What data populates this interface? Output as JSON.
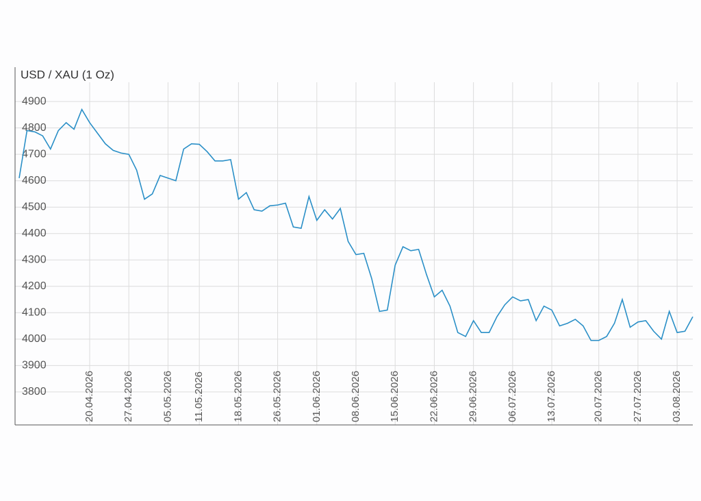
{
  "chart_data": {
    "type": "line",
    "title": "USD / XAU (1 Oz)",
    "categories": [
      null,
      null,
      null,
      null,
      null,
      null,
      null,
      null,
      null,
      "20.04.2026",
      null,
      null,
      null,
      null,
      "27.04.2026",
      null,
      null,
      null,
      null,
      "05.05.2026",
      null,
      null,
      null,
      "11.05.2026",
      null,
      null,
      null,
      null,
      "18.05.2026",
      null,
      null,
      null,
      null,
      "26.05.2026",
      null,
      null,
      null,
      null,
      "01.06.2026",
      null,
      null,
      null,
      null,
      "08.06.2026",
      null,
      null,
      null,
      null,
      "15.06.2026",
      null,
      null,
      null,
      null,
      "22.06.2026",
      null,
      null,
      null,
      null,
      "29.06.2026",
      null,
      null,
      null,
      null,
      "06.07.2026",
      null,
      null,
      null,
      null,
      "13.07.2026",
      null,
      null,
      null,
      null,
      null,
      "20.07.2026",
      null,
      null,
      null,
      null,
      "27.07.2026",
      null,
      null,
      null,
      null,
      "03.08.2026",
      null,
      null
    ],
    "values": [
      4610,
      4790,
      4785,
      4770,
      4720,
      4790,
      4820,
      4795,
      4870,
      4820,
      4780,
      4740,
      4715,
      4705,
      4700,
      4640,
      4530,
      4550,
      4620,
      4610,
      4600,
      4720,
      4740,
      4738,
      4710,
      4675,
      4675,
      4680,
      4530,
      4555,
      4490,
      4485,
      4505,
      4508,
      4515,
      4425,
      4420,
      4540,
      4450,
      4490,
      4455,
      4495,
      4370,
      4320,
      4325,
      4230,
      4105,
      4110,
      4280,
      4350,
      4335,
      4340,
      4245,
      4160,
      4185,
      4125,
      4025,
      4010,
      4070,
      4025,
      4025,
      4085,
      4130,
      4160,
      4145,
      4150,
      4070,
      4125,
      4110,
      4050,
      4060,
      4075,
      4050,
      3995,
      3995,
      4010,
      4060,
      4150,
      4045,
      4065,
      4070,
      4030,
      4000,
      4105,
      4025,
      4030,
      4085
    ],
    "color": "#2a8fc7",
    "ylim": [
      3675,
      5025
    ],
    "yticks": [
      3800,
      3900,
      4000,
      4100,
      4200,
      4300,
      4400,
      4500,
      4600,
      4700,
      4800,
      4900
    ],
    "grid": true
  }
}
